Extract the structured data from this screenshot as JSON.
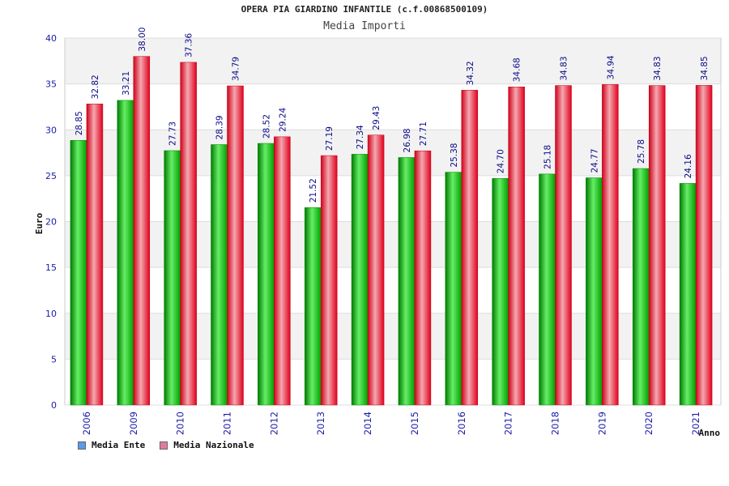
{
  "chart_data": {
    "type": "bar",
    "title": "OPERA PIA GIARDINO INFANTILE (c.f.00868500109)",
    "subtitle": "Media Importi",
    "xlabel": "Anno",
    "ylabel": "Euro",
    "ylim": [
      0,
      40
    ],
    "yticks": [
      "0",
      "5",
      "10",
      "15",
      "20",
      "25",
      "30",
      "35",
      "40"
    ],
    "categories": [
      "2006",
      "2009",
      "2010",
      "2011",
      "2012",
      "2013",
      "2014",
      "2015",
      "2016",
      "2017",
      "2018",
      "2019",
      "2020",
      "2021"
    ],
    "series": [
      {
        "name": "Media Ente",
        "color": "#00b800",
        "legend_color": "#5b9be8",
        "values": [
          28.85,
          33.21,
          27.73,
          28.39,
          28.52,
          21.52,
          27.34,
          26.98,
          25.38,
          24.7,
          25.18,
          24.77,
          25.78,
          24.16
        ],
        "labels": [
          "28.85",
          "33.21",
          "27.73",
          "28.39",
          "28.52",
          "21.52",
          "27.34",
          "26.98",
          "25.38",
          "24.70",
          "25.18",
          "24.77",
          "25.78",
          "24.16"
        ]
      },
      {
        "name": "Media Nazionale",
        "color": "#e8001c",
        "legend_color": "#e07aa0",
        "values": [
          32.82,
          38.0,
          37.36,
          34.79,
          29.24,
          27.19,
          29.43,
          27.71,
          34.32,
          34.68,
          34.83,
          34.94,
          34.83,
          34.85
        ],
        "labels": [
          "32.82",
          "38.00",
          "37.36",
          "34.79",
          "29.24",
          "27.19",
          "29.43",
          "27.71",
          "34.32",
          "34.68",
          "34.83",
          "34.94",
          "34.83",
          "34.85"
        ]
      }
    ],
    "grid": true,
    "legend_position": "bottom-left"
  }
}
